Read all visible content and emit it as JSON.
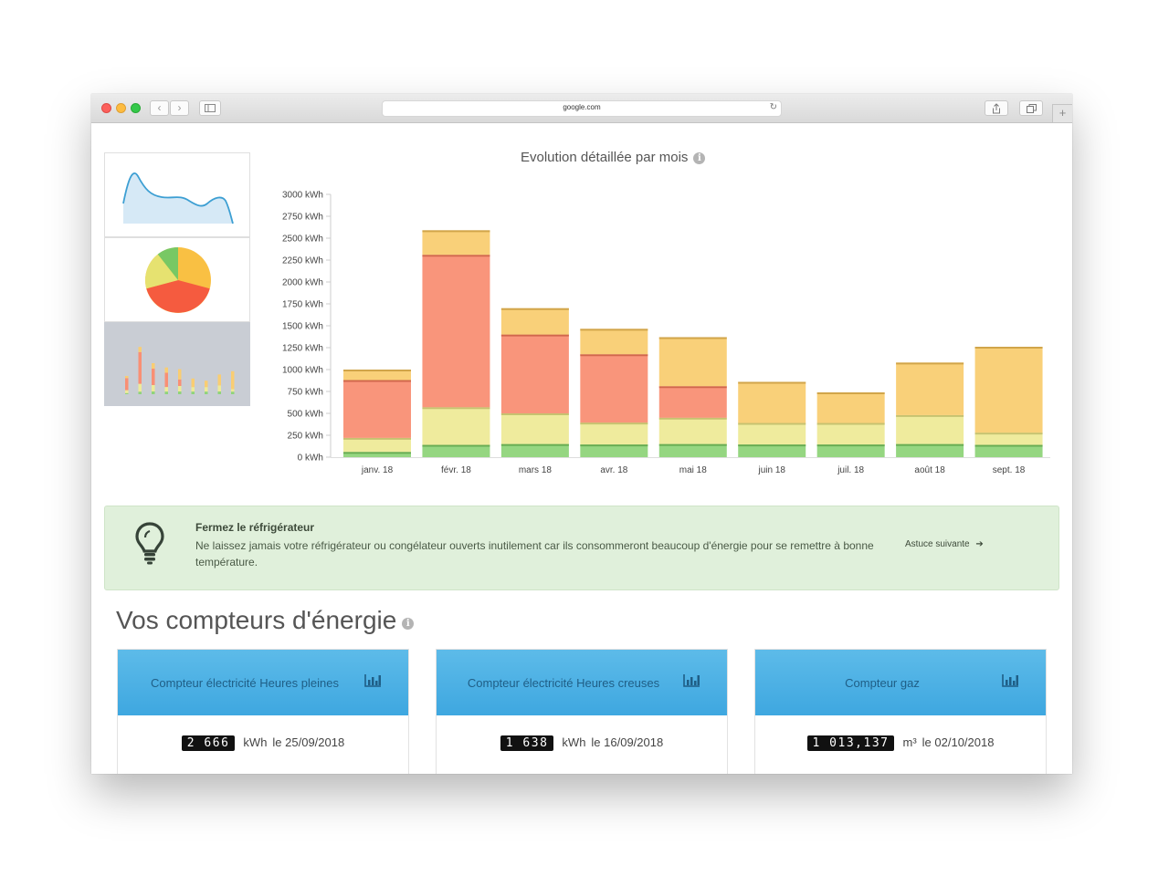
{
  "browser": {
    "url": "google.com",
    "back_icon": "chevron-left-icon",
    "forward_icon": "chevron-right-icon",
    "reload_icon": "reload-icon"
  },
  "chart_selector": {
    "options": [
      "area-chart-icon",
      "pie-chart-icon",
      "bar-chart-icon"
    ],
    "selected": "bar-chart-icon"
  },
  "chart_header": {
    "title": "Evolution détaillée par mois",
    "info_icon": "i"
  },
  "chart_data": {
    "type": "bar",
    "stacked": true,
    "title": "Evolution détaillée par mois",
    "ylim": [
      0,
      3000
    ],
    "y_ticks": [
      "3000 kWh",
      "2750 kWh",
      "2500 kWh",
      "2250 kWh",
      "2000 kWh",
      "1750 kWh",
      "1500 kWh",
      "1250 kWh",
      "1000 kWh",
      "750 kWh",
      "500 kWh",
      "250 kWh",
      "0 kWh"
    ],
    "y_tick_values": [
      3000,
      2750,
      2500,
      2250,
      2000,
      1750,
      1500,
      1250,
      1000,
      750,
      500,
      250,
      0
    ],
    "categories": [
      "janv. 18",
      "févr. 18",
      "mars 18",
      "avr. 18",
      "mai 18",
      "juin 18",
      "juil. 18",
      "août 18",
      "sept. 18"
    ],
    "series": [
      {
        "color": "#8fd47a",
        "values": [
          60,
          140,
          150,
          145,
          150,
          145,
          145,
          150,
          140
        ]
      },
      {
        "color": "#eeea98",
        "values": [
          160,
          430,
          350,
          250,
          300,
          245,
          245,
          330,
          140
        ]
      },
      {
        "color": "#f98f74",
        "values": [
          660,
          1740,
          900,
          780,
          360,
          0,
          0,
          0,
          0
        ]
      },
      {
        "color": "#f9cd72",
        "values": [
          120,
          280,
          300,
          290,
          560,
          470,
          350,
          600,
          980
        ]
      }
    ]
  },
  "tip": {
    "title": "Fermez le réfrigérateur",
    "text": "Ne laissez jamais votre réfrigérateur ou congélateur ouverts inutilement car ils consommeront beaucoup d'énergie pour se remettre à bonne température.",
    "next_label": "Astuce suivante",
    "next_icon": "➔"
  },
  "meters_section": {
    "title": "Vos compteurs d'énergie",
    "info_icon": "i",
    "meters": [
      {
        "label": "Compteur électricité Heures pleines",
        "reading": "2 666",
        "unit": "kWh",
        "date": "le 25/09/2018"
      },
      {
        "label": "Compteur électricité Heures creuses",
        "reading": "1 638",
        "unit": "kWh",
        "date": "le 16/09/2018"
      },
      {
        "label": "Compteur gaz",
        "reading": "1 013,137",
        "unit": "m³",
        "date": "le 02/10/2018"
      }
    ]
  }
}
